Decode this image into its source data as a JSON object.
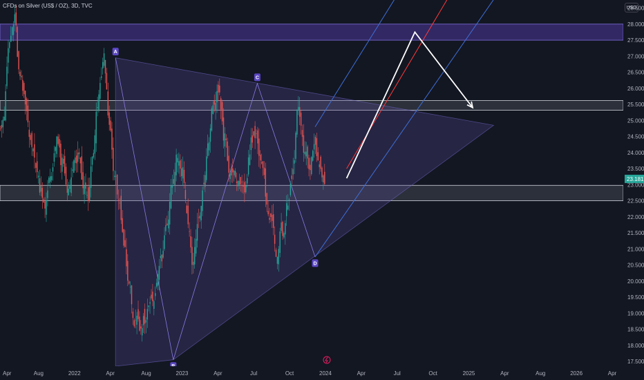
{
  "header": {
    "title": "CFDs on Silver (US$ / OZ), 3D, TVC"
  },
  "currency_button": {
    "label": "USD"
  },
  "colors": {
    "background": "#131722",
    "up_candle": "#26a69a",
    "down_candle": "#ef5350",
    "zone_fill": "#3d2f7a",
    "zone_border": "#7e6fe0",
    "sr_fill": "#4a4f5c",
    "sr_border": "#d1d4dc",
    "triangle_fill": "#5a4a9a",
    "channel_blue": "#3f6fd8",
    "channel_red": "#ff3b3b",
    "projection": "#ffffff",
    "price_tag": "#26a69a",
    "label_bg": "#5b47c4"
  },
  "chart_data": {
    "type": "candlestick",
    "symbol": "CFDs on Silver (US$ / OZ)",
    "interval": "3D",
    "source": "TVC",
    "x_axis": {
      "ticks": [
        "Apr",
        "Aug",
        "2022",
        "Apr",
        "Aug",
        "2023",
        "Apr",
        "Jul",
        "Oct",
        "2024",
        "Apr",
        "Jul",
        "Oct",
        "2025",
        "Apr",
        "Aug",
        "2026",
        "Apr"
      ]
    },
    "y_axis": {
      "range": [
        17.35,
        28.75
      ],
      "ticks": [
        "17.500",
        "18.000",
        "18.500",
        "19.000",
        "19.500",
        "20.000",
        "20.500",
        "21.000",
        "21.500",
        "22.000",
        "22.500",
        "23.000",
        "23.500",
        "24.000",
        "24.500",
        "25.000",
        "25.500",
        "26.000",
        "26.500",
        "27.000",
        "27.500",
        "28.000",
        "28.500"
      ]
    },
    "last_price": "23.181",
    "close_series": [
      25.2,
      27.4,
      28.1,
      26.3,
      25.5,
      24.6,
      23.7,
      22.9,
      22.4,
      23.3,
      24.5,
      23.6,
      22.8,
      23.4,
      23.8,
      23.0,
      22.6,
      23.9,
      25.6,
      26.9,
      25.1,
      23.2,
      22.3,
      21.0,
      19.6,
      18.6,
      18.3,
      18.9,
      19.5,
      19.8,
      20.7,
      21.8,
      23.2,
      24.0,
      23.4,
      22.0,
      20.5,
      21.9,
      22.8,
      24.3,
      25.6,
      25.9,
      24.4,
      23.2,
      23.4,
      22.8,
      22.9,
      24.3,
      24.7,
      23.5,
      22.6,
      21.8,
      20.9,
      21.6,
      22.3,
      23.3,
      25.4,
      24.1,
      23.6,
      24.2,
      23.6,
      23.18
    ],
    "zones": [
      {
        "kind": "supply",
        "top": 28.0,
        "bottom": 27.5
      },
      {
        "kind": "resistance",
        "top": 25.62,
        "bottom": 25.32
      },
      {
        "kind": "support",
        "top": 22.98,
        "bottom": 22.5
      }
    ],
    "triangle_pattern": {
      "points": [
        {
          "label": "A",
          "time_index": 22,
          "price": 26.95
        },
        {
          "label": "B",
          "time_index": 33,
          "price": 17.55
        },
        {
          "label": "C",
          "time_index": 49,
          "price": 26.15
        },
        {
          "label": "D",
          "time_index": 60,
          "price": 20.75
        }
      ],
      "apex": {
        "time_index": 94,
        "price": 24.85
      }
    },
    "channel": {
      "lower": [
        {
          "time_index": 60,
          "price": 20.75
        },
        {
          "time_index": 95,
          "price": 29.0
        }
      ],
      "middle": [
        {
          "time_index": 66,
          "price": 23.5
        },
        {
          "time_index": 86,
          "price": 29.0
        }
      ],
      "upper": [
        {
          "time_index": 60,
          "price": 24.8
        },
        {
          "time_index": 76,
          "price": 29.0
        }
      ]
    },
    "projection": [
      {
        "time_index": 66,
        "price": 23.2
      },
      {
        "time_index": 79,
        "price": 27.75
      },
      {
        "time_index": 90,
        "price": 25.4
      }
    ]
  }
}
